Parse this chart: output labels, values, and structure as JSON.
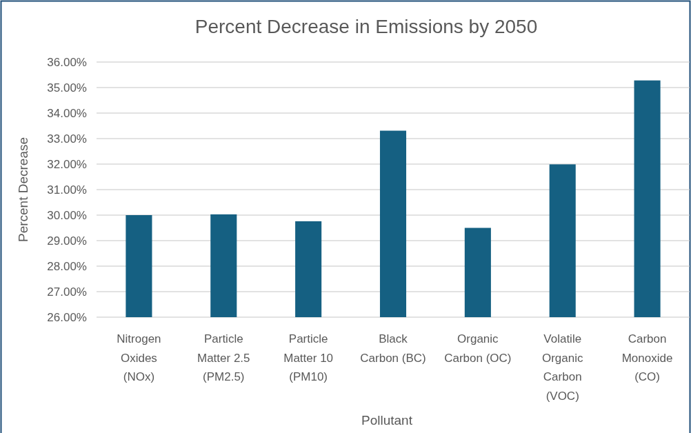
{
  "chart_data": {
    "type": "bar",
    "title": "Percent Decrease in Emissions by 2050",
    "xlabel": "Pollutant",
    "ylabel": "Percent Decrease",
    "categories": [
      "Nitrogen Oxides (NOx)",
      "Particle Matter 2.5 (PM2.5)",
      "Particle Matter 10 (PM10)",
      "Black Carbon (BC)",
      "Organic Carbon (OC)",
      "Volatile Organic Carbon (VOC)",
      "Carbon Monoxide (CO)"
    ],
    "values": [
      30.0,
      30.03,
      29.76,
      33.31,
      29.5,
      31.99,
      35.28
    ],
    "color": "#156082",
    "ylim": [
      26,
      36
    ],
    "yticks": [
      {
        "value": 26,
        "label": "26.00%"
      },
      {
        "value": 27,
        "label": "27.00%"
      },
      {
        "value": 28,
        "label": "28.00%"
      },
      {
        "value": 29,
        "label": "29.00%"
      },
      {
        "value": 30,
        "label": "30.00%"
      },
      {
        "value": 31,
        "label": "31.00%"
      },
      {
        "value": 32,
        "label": "32.00%"
      },
      {
        "value": 33,
        "label": "33.00%"
      },
      {
        "value": 34,
        "label": "34.00%"
      },
      {
        "value": 35,
        "label": "35.00%"
      },
      {
        "value": 36,
        "label": "36.00%"
      }
    ],
    "grid": "y"
  }
}
